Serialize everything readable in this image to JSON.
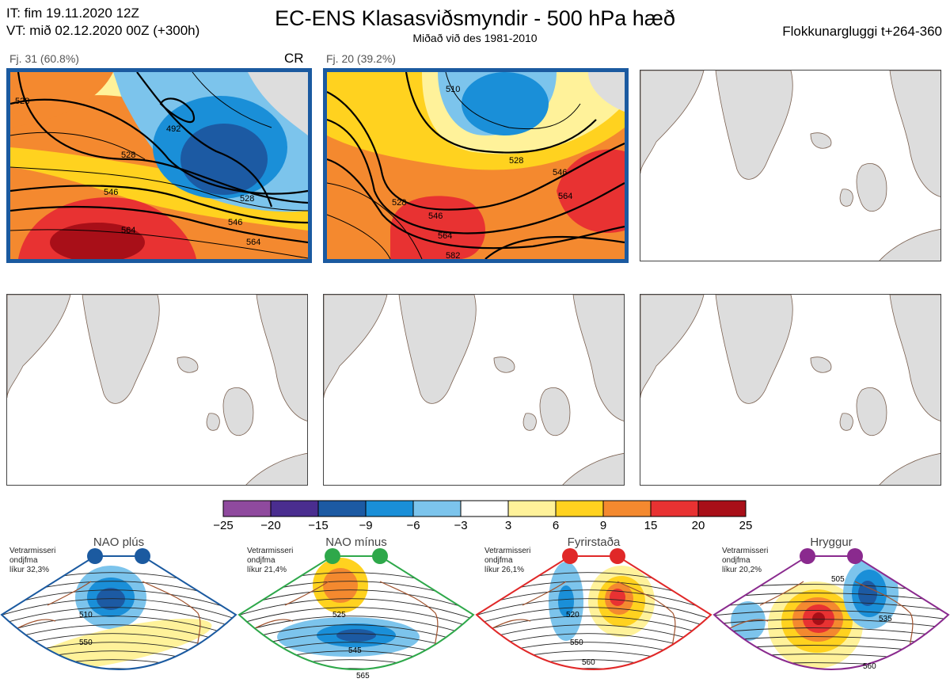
{
  "header": {
    "issue_time": "IT: fim 19.11.2020 12Z",
    "valid_time": "VT: mið 02.12.2020 00Z  (+300h)",
    "title": "EC-ENS Klasasviðsmyndir - 500 hPa hæð",
    "subtitle": "Miðað við des 1981-2010",
    "window": "Flokkunargluggi t+264-360"
  },
  "panels": [
    {
      "label": "Fj. 31 (60.8%)",
      "regime_tag": "CR",
      "selected": true,
      "contours": [
        "528",
        "492",
        "528",
        "546",
        "528",
        "546",
        "564",
        "564"
      ]
    },
    {
      "label": "Fj. 20 (39.2%)",
      "regime_tag": "",
      "selected": true,
      "contours": [
        "510",
        "528",
        "546",
        "528",
        "546",
        "564",
        "564",
        "582"
      ]
    }
  ],
  "colorbar": {
    "ticks": [
      "−25",
      "−20",
      "−15",
      "−9",
      "−6",
      "−3",
      "3",
      "6",
      "9",
      "15",
      "20",
      "25"
    ],
    "colors": [
      "#8f4a9e",
      "#4a2d8f",
      "#1c5aa3",
      "#1a8fd8",
      "#7cc4ec",
      "#ffffff",
      "#fff29a",
      "#ffd21f",
      "#f4892f",
      "#e83232",
      "#a80f18"
    ]
  },
  "regimes": [
    {
      "name": "NAO plús",
      "info": [
        "Vetrarmisseri",
        "ondjfma",
        "líkur 32,3%"
      ],
      "color": "#1b5aa0",
      "contours": [
        "510",
        "550"
      ]
    },
    {
      "name": "NAO mínus",
      "info": [
        "Vetrarmisseri",
        "ondjfma",
        "líkur 21,4%"
      ],
      "color": "#2ea84a",
      "contours": [
        "525",
        "545",
        "565"
      ]
    },
    {
      "name": "Fyrirstaða",
      "info": [
        "Vetrarmisseri",
        "ondjfma",
        "líkur 26,1%"
      ],
      "color": "#e02828",
      "contours": [
        "520",
        "550",
        "560"
      ]
    },
    {
      "name": "Hryggur",
      "info": [
        "Vetrarmisseri",
        "ondjfma",
        "líkur 20,2%"
      ],
      "color": "#8a2a8e",
      "contours": [
        "505",
        "535",
        "560"
      ]
    }
  ]
}
